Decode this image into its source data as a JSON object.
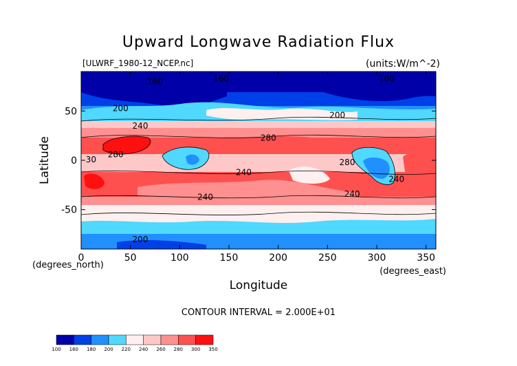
{
  "header": {
    "title": "Upward Longwave Radiation Flux",
    "source_file": "[ULWRF_1980-12_NCEP.nc]",
    "units": "(units:W/m^-2)"
  },
  "footer": {
    "contour_interval": "CONTOUR INTERVAL = 2.000E+01"
  },
  "chart_data": {
    "type": "heatmap",
    "title": "Upward Longwave Radiation Flux",
    "xlabel": "Longitude",
    "ylabel": "Latitude",
    "x_unit_label": "(degrees_east)",
    "y_unit_label": "(degrees_north)",
    "xlim": [
      0,
      360
    ],
    "ylim": [
      -90,
      90
    ],
    "xticks": [
      0,
      50,
      100,
      150,
      200,
      250,
      300,
      350
    ],
    "yticks": [
      -50,
      0,
      50
    ],
    "colorbar": {
      "levels": [
        100,
        160,
        180,
        200,
        220,
        240,
        260,
        280,
        300,
        350
      ],
      "colors": [
        "#0000a8",
        "#0040e8",
        "#2090ff",
        "#50d8ff",
        "#fff0f0",
        "#ffc8c8",
        "#ff9090",
        "#ff5050",
        "#ff1010"
      ]
    },
    "contour_labels": [
      {
        "text": "160",
        "lon": 75,
        "lat": 77
      },
      {
        "text": "160",
        "lon": 142,
        "lat": 80
      },
      {
        "text": "160",
        "lon": 310,
        "lat": 80
      },
      {
        "text": "200",
        "lon": 40,
        "lat": 50
      },
      {
        "text": "240",
        "lon": 60,
        "lat": 32
      },
      {
        "text": "200",
        "lon": 260,
        "lat": 43
      },
      {
        "text": "280",
        "lon": 190,
        "lat": 20
      },
      {
        "text": "280",
        "lon": 35,
        "lat": 3
      },
      {
        "text": "30",
        "lon": 10,
        "lat": -2
      },
      {
        "text": "240",
        "lon": 165,
        "lat": -15
      },
      {
        "text": "280",
        "lon": 270,
        "lat": -5
      },
      {
        "text": "240",
        "lon": 320,
        "lat": -22
      },
      {
        "text": "240",
        "lon": 126,
        "lat": -40
      },
      {
        "text": "240",
        "lon": 275,
        "lat": -37
      },
      {
        "text": "200",
        "lon": 60,
        "lat": -83
      }
    ]
  }
}
